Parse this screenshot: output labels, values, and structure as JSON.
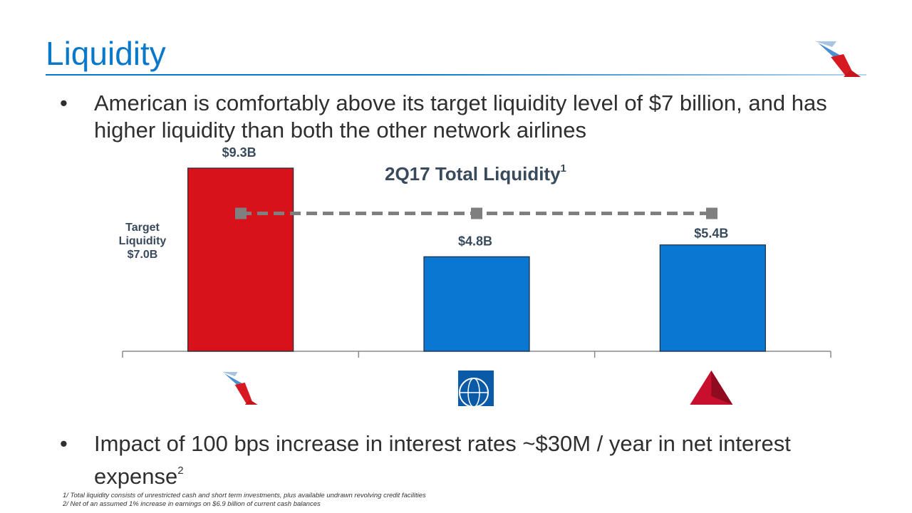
{
  "slide": {
    "title": "Liquidity",
    "bullet_marker": "•",
    "bullet1": "American is comfortably above its target liquidity level of $7 billion, and has higher liquidity than both the other network airlines",
    "bullet2_main": "Impact of 100 bps increase in interest rates  ~$30M / year in net interest expense",
    "bullet2_sup": "2",
    "footnotes": [
      "1/ Total liquidity consists of unrestricted cash and short term investments, plus available undrawn revolving credit facilities",
      "2/ Net of an assumed 1% increase in earnings on $6.9 billion of current cash balances"
    ],
    "logos": [
      "american-airlines-logo",
      "united-airlines-globe-logo",
      "delta-airlines-logo"
    ]
  },
  "chart_data": {
    "type": "bar",
    "title": "2Q17 Total Liquidity",
    "title_sup": "1",
    "categories": [
      "American Airlines",
      "United Airlines",
      "Delta Air Lines"
    ],
    "values": [
      9.3,
      4.8,
      5.4
    ],
    "value_labels": [
      "$9.3B",
      "$4.8B",
      "$5.4B"
    ],
    "bar_colors": [
      "#d7121b",
      "#0a78d2",
      "#0a78d2"
    ],
    "ylim": [
      0,
      10.6
    ],
    "target": {
      "value": 7.0,
      "label_lines": [
        "Target",
        "Liquidity",
        "$7.0B"
      ],
      "color": "#7f7f7f",
      "style": "dashed"
    },
    "xlabel": "",
    "ylabel": "",
    "grid": false
  }
}
